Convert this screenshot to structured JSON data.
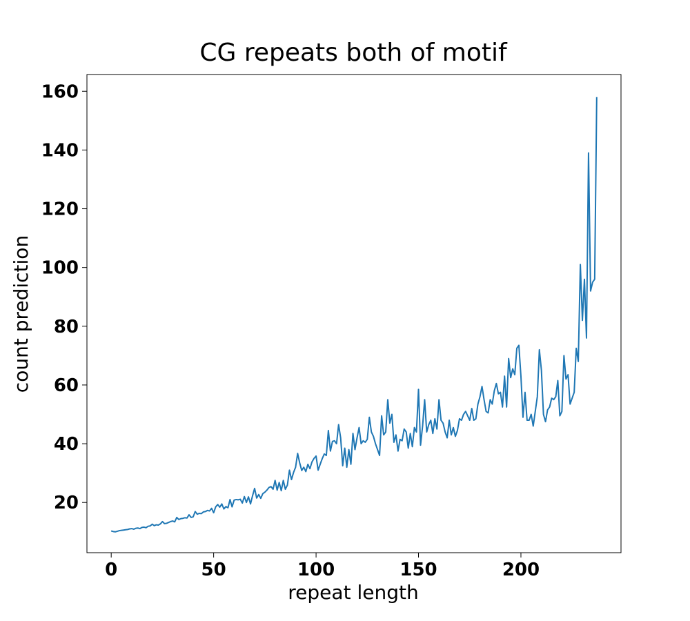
{
  "chart_data": {
    "type": "line",
    "title": "CG repeats both of motif",
    "x_label": "repeat length",
    "y_label": "count prediction",
    "x": [
      0,
      1,
      2,
      3,
      4,
      5,
      6,
      7,
      8,
      9,
      10,
      11,
      12,
      13,
      14,
      15,
      16,
      17,
      18,
      19,
      20,
      21,
      22,
      23,
      24,
      25,
      26,
      27,
      28,
      29,
      30,
      31,
      32,
      33,
      34,
      35,
      36,
      37,
      38,
      39,
      40,
      41,
      42,
      43,
      44,
      45,
      46,
      47,
      48,
      49,
      50,
      51,
      52,
      53,
      54,
      55,
      56,
      57,
      58,
      59,
      60,
      61,
      62,
      63,
      64,
      65,
      66,
      67,
      68,
      69,
      70,
      71,
      72,
      73,
      74,
      75,
      76,
      77,
      78,
      79,
      80,
      81,
      82,
      83,
      84,
      85,
      86,
      87,
      88,
      89,
      90,
      91,
      92,
      93,
      94,
      95,
      96,
      97,
      98,
      99,
      100,
      101,
      102,
      103,
      104,
      105,
      106,
      107,
      108,
      109,
      110,
      111,
      112,
      113,
      114,
      115,
      116,
      117,
      118,
      119,
      120,
      121,
      122,
      123,
      124,
      125,
      126,
      127,
      128,
      129,
      130,
      131,
      132,
      133,
      134,
      135,
      136,
      137,
      138,
      139,
      140,
      141,
      142,
      143,
      144,
      145,
      146,
      147,
      148,
      149,
      150,
      151,
      152,
      153,
      154,
      155,
      156,
      157,
      158,
      159,
      160,
      161,
      162,
      163,
      164,
      165,
      166,
      167,
      168,
      169,
      170,
      171,
      172,
      173,
      174,
      175,
      176,
      177,
      178,
      179,
      180,
      181,
      182,
      183,
      184,
      185,
      186,
      187,
      188,
      189,
      190,
      191,
      192,
      193,
      194,
      195,
      196,
      197,
      198,
      199,
      200,
      201,
      202,
      203,
      204,
      205,
      206,
      207,
      208,
      209,
      210,
      211,
      212,
      213,
      214,
      215,
      216,
      217,
      218,
      219,
      220,
      221,
      222,
      223,
      224,
      225,
      226,
      227,
      228,
      229,
      230,
      231,
      232,
      233,
      234,
      235,
      236,
      237
    ],
    "series": [
      {
        "color": "#1f77b4",
        "values": [
          10.3,
          10.1,
          10.0,
          10.2,
          10.4,
          10.5,
          10.6,
          10.7,
          10.8,
          11.0,
          11.1,
          10.9,
          11.2,
          11.3,
          11.1,
          11.5,
          11.6,
          11.4,
          11.9,
          12.0,
          12.6,
          12.1,
          12.4,
          12.3,
          12.7,
          13.5,
          12.8,
          12.9,
          13.2,
          13.5,
          13.7,
          13.4,
          14.9,
          14.2,
          14.5,
          14.6,
          14.8,
          14.7,
          15.8,
          14.9,
          15.1,
          16.9,
          16.0,
          16.3,
          16.2,
          16.8,
          16.9,
          17.3,
          17.1,
          18.0,
          16.5,
          18.5,
          19.3,
          18.4,
          19.5,
          17.8,
          18.6,
          18.2,
          21.0,
          18.5,
          20.8,
          21.0,
          20.9,
          21.1,
          19.8,
          22.0,
          20.0,
          21.9,
          19.5,
          22.3,
          24.8,
          21.5,
          22.7,
          21.4,
          23.0,
          23.5,
          24.2,
          25.1,
          25.4,
          24.5,
          27.5,
          24.2,
          26.8,
          24.0,
          27.5,
          24.5,
          25.9,
          31.0,
          27.8,
          30.2,
          32.0,
          36.7,
          33.5,
          30.9,
          32.0,
          30.5,
          33.0,
          31.5,
          33.8,
          35.0,
          35.8,
          31.0,
          33.0,
          34.9,
          36.5,
          36.0,
          44.5,
          37.5,
          40.8,
          41.0,
          40.0,
          46.5,
          42.0,
          32.5,
          38.5,
          32.0,
          38.0,
          33.0,
          43.5,
          38.0,
          42.0,
          45.5,
          40.0,
          41.0,
          40.5,
          41.5,
          49.0,
          44.0,
          42.5,
          40.0,
          38.0,
          36.0,
          49.5,
          43.0,
          44.0,
          55.0,
          47.0,
          50.0,
          40.5,
          43.0,
          37.5,
          41.5,
          41.0,
          45.0,
          44.0,
          38.5,
          43.5,
          39.0,
          45.5,
          44.0,
          58.5,
          39.5,
          46.0,
          55.0,
          44.0,
          46.5,
          48.0,
          43.5,
          48.5,
          45.0,
          55.0,
          48.0,
          47.0,
          44.0,
          42.0,
          48.0,
          43.0,
          45.5,
          42.5,
          44.5,
          48.5,
          48.0,
          50.0,
          51.0,
          49.5,
          48.0,
          52.0,
          48.0,
          48.5,
          53.5,
          56.0,
          59.5,
          55.0,
          51.0,
          50.5,
          55.0,
          53.5,
          58.0,
          60.5,
          57.0,
          57.5,
          52.5,
          63.0,
          52.5,
          69.0,
          62.5,
          65.5,
          63.5,
          72.5,
          73.5,
          63.0,
          49.0,
          57.5,
          48.0,
          48.0,
          50.0,
          46.0,
          51.0,
          56.0,
          72.0,
          65.0,
          50.0,
          47.5,
          51.5,
          52.5,
          55.5,
          55.0,
          56.0,
          61.5,
          49.5,
          51.0,
          70.0,
          62.0,
          63.5,
          53.5,
          55.5,
          57.5,
          72.5,
          68.0,
          101.0,
          82.0,
          96.0,
          76.0,
          139.0,
          92.0,
          95.0,
          96.0,
          158.0
        ]
      }
    ],
    "xlim": [
      -11.85,
      248.85
    ],
    "ylim": [
      2.9,
      165.7
    ],
    "xticks": [
      0,
      50,
      100,
      150,
      200
    ],
    "yticks": [
      20,
      40,
      60,
      80,
      100,
      120,
      140,
      160
    ],
    "grid": false
  }
}
